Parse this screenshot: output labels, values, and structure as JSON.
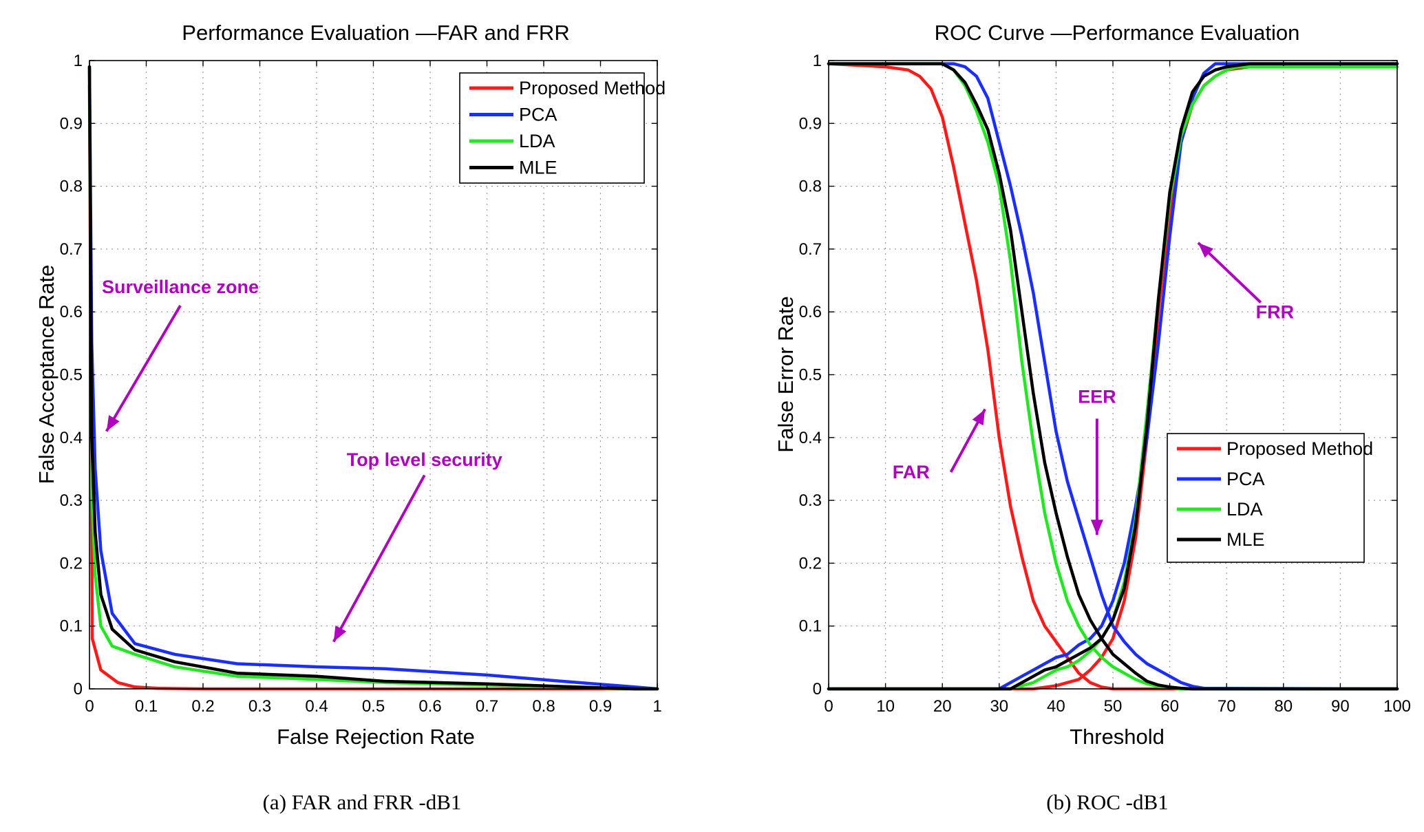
{
  "chart_data": [
    {
      "type": "line",
      "title": "Performance Evaluation —FAR and FRR",
      "xlabel": "False Rejection Rate",
      "ylabel": "False Acceptance Rate",
      "xlim": [
        0,
        1
      ],
      "ylim": [
        0,
        1
      ],
      "xticks": [
        0,
        0.1,
        0.2,
        0.3,
        0.4,
        0.5,
        0.6,
        0.7,
        0.8,
        0.9,
        1
      ],
      "yticks": [
        0,
        0.1,
        0.2,
        0.3,
        0.4,
        0.5,
        0.6,
        0.7,
        0.8,
        0.9,
        1
      ],
      "grid": true,
      "legend_position": "top-right",
      "caption": "(a) FAR and FRR -dB1",
      "series": [
        {
          "name": "Proposed Method",
          "color": "#ff1a1a",
          "x": [
            0.0,
            0.005,
            0.02,
            0.05,
            0.08,
            0.12,
            0.2,
            0.4,
            0.6,
            0.8,
            1.0
          ],
          "y": [
            0.96,
            0.08,
            0.03,
            0.01,
            0.003,
            0.001,
            0.0,
            0.0,
            0.0,
            0.0,
            0.0
          ]
        },
        {
          "name": "PCA",
          "color": "#1a2eff",
          "x": [
            0.0,
            0.004,
            0.01,
            0.02,
            0.04,
            0.08,
            0.15,
            0.26,
            0.4,
            0.52,
            0.7,
            0.82,
            0.96,
            1.0
          ],
          "y": [
            0.99,
            0.55,
            0.35,
            0.22,
            0.12,
            0.072,
            0.055,
            0.04,
            0.035,
            0.032,
            0.022,
            0.013,
            0.003,
            0.0
          ]
        },
        {
          "name": "LDA",
          "color": "#22e822",
          "x": [
            0.0,
            0.004,
            0.01,
            0.02,
            0.04,
            0.08,
            0.15,
            0.26,
            0.4,
            0.52,
            0.7,
            0.82,
            0.96,
            1.0
          ],
          "y": [
            0.99,
            0.32,
            0.18,
            0.1,
            0.068,
            0.055,
            0.035,
            0.02,
            0.015,
            0.01,
            0.006,
            0.003,
            0.0,
            0.0
          ]
        },
        {
          "name": "MLE",
          "color": "#000000",
          "x": [
            0.0,
            0.004,
            0.01,
            0.02,
            0.04,
            0.08,
            0.15,
            0.26,
            0.4,
            0.52,
            0.7,
            0.82,
            0.96,
            1.0
          ],
          "y": [
            0.99,
            0.4,
            0.25,
            0.15,
            0.095,
            0.062,
            0.043,
            0.025,
            0.02,
            0.012,
            0.008,
            0.004,
            0.0,
            0.0
          ]
        }
      ],
      "annotations": [
        {
          "text": "Surveillance zone",
          "x": 0.16,
          "y": 0.63,
          "arrow_from": [
            0.16,
            0.61
          ],
          "arrow_to": [
            0.03,
            0.41
          ]
        },
        {
          "text": "Top level security",
          "x": 0.59,
          "y": 0.355,
          "arrow_from": [
            0.59,
            0.34
          ],
          "arrow_to": [
            0.43,
            0.075
          ]
        }
      ]
    },
    {
      "type": "line",
      "title": "ROC Curve —Performance Evaluation",
      "xlabel": "Threshold",
      "ylabel": "False Error Rate",
      "xlim": [
        0,
        100
      ],
      "ylim": [
        0,
        1
      ],
      "xticks": [
        0,
        10,
        20,
        30,
        40,
        50,
        60,
        70,
        80,
        90,
        100
      ],
      "yticks": [
        0,
        0.1,
        0.2,
        0.3,
        0.4,
        0.5,
        0.6,
        0.7,
        0.8,
        0.9,
        1
      ],
      "grid": true,
      "legend_position": "lower-right",
      "caption": "(b) ROC -dB1",
      "series": [
        {
          "name": "Proposed Method",
          "color": "#ff1a1a",
          "kind": "FAR",
          "x": [
            0,
            10,
            14,
            16,
            18,
            20,
            22,
            24,
            26,
            28,
            30,
            32,
            34,
            36,
            38,
            40,
            42,
            44,
            46,
            48,
            50,
            100
          ],
          "y": [
            0.995,
            0.99,
            0.985,
            0.975,
            0.955,
            0.91,
            0.83,
            0.74,
            0.65,
            0.54,
            0.4,
            0.29,
            0.21,
            0.14,
            0.1,
            0.075,
            0.05,
            0.025,
            0.01,
            0.003,
            0.0,
            0.0
          ]
        },
        {
          "name": "Proposed Method",
          "color": "#ff1a1a",
          "kind": "FRR",
          "legend": false,
          "x": [
            0,
            36,
            40,
            44,
            46,
            48,
            50,
            52,
            54,
            56,
            58,
            60,
            62,
            64,
            66,
            68,
            70,
            74,
            100
          ],
          "y": [
            0.0,
            0.0,
            0.005,
            0.015,
            0.03,
            0.05,
            0.08,
            0.14,
            0.24,
            0.4,
            0.6,
            0.76,
            0.87,
            0.93,
            0.96,
            0.975,
            0.985,
            0.99,
            0.99
          ]
        },
        {
          "name": "PCA",
          "color": "#1a2eff",
          "kind": "FAR",
          "x": [
            0,
            20,
            22,
            24,
            26,
            28,
            30,
            32,
            34,
            36,
            38,
            40,
            42,
            44,
            46,
            48,
            50,
            52,
            54,
            56,
            58,
            60,
            62,
            64,
            66,
            100
          ],
          "y": [
            0.995,
            0.995,
            0.995,
            0.99,
            0.975,
            0.94,
            0.87,
            0.8,
            0.72,
            0.63,
            0.52,
            0.41,
            0.33,
            0.27,
            0.21,
            0.15,
            0.1,
            0.075,
            0.055,
            0.04,
            0.03,
            0.02,
            0.01,
            0.004,
            0.001,
            0.0
          ]
        },
        {
          "name": "PCA",
          "color": "#1a2eff",
          "kind": "FRR",
          "legend": false,
          "x": [
            0,
            30,
            32,
            34,
            36,
            38,
            40,
            42,
            44,
            46,
            48,
            50,
            52,
            54,
            56,
            58,
            60,
            62,
            64,
            66,
            68,
            100
          ],
          "y": [
            0.0,
            0.0,
            0.01,
            0.02,
            0.03,
            0.04,
            0.05,
            0.055,
            0.07,
            0.08,
            0.1,
            0.14,
            0.2,
            0.29,
            0.4,
            0.55,
            0.72,
            0.87,
            0.94,
            0.98,
            0.995,
            0.995
          ]
        },
        {
          "name": "LDA",
          "color": "#22e822",
          "kind": "FAR",
          "x": [
            0,
            20,
            22,
            24,
            26,
            28,
            30,
            32,
            34,
            36,
            38,
            40,
            42,
            44,
            46,
            48,
            50,
            52,
            54,
            56,
            58,
            60,
            62,
            100
          ],
          "y": [
            0.995,
            0.995,
            0.985,
            0.96,
            0.92,
            0.87,
            0.8,
            0.68,
            0.52,
            0.39,
            0.28,
            0.2,
            0.14,
            0.1,
            0.07,
            0.05,
            0.035,
            0.025,
            0.015,
            0.008,
            0.004,
            0.002,
            0.0,
            0.0
          ]
        },
        {
          "name": "LDA",
          "color": "#22e822",
          "kind": "FRR",
          "legend": false,
          "x": [
            0,
            32,
            34,
            36,
            38,
            40,
            42,
            44,
            46,
            48,
            50,
            52,
            54,
            56,
            58,
            60,
            62,
            64,
            66,
            68,
            70,
            72,
            76,
            100
          ],
          "y": [
            0.0,
            0.0,
            0.005,
            0.01,
            0.02,
            0.03,
            0.035,
            0.045,
            0.06,
            0.08,
            0.11,
            0.17,
            0.27,
            0.44,
            0.62,
            0.78,
            0.88,
            0.93,
            0.96,
            0.975,
            0.985,
            0.99,
            0.99,
            0.99
          ]
        },
        {
          "name": "MLE",
          "color": "#000000",
          "kind": "FAR",
          "x": [
            0,
            20,
            22,
            24,
            26,
            28,
            30,
            32,
            34,
            36,
            38,
            40,
            42,
            44,
            46,
            48,
            50,
            52,
            54,
            56,
            58,
            60,
            62,
            64,
            100
          ],
          "y": [
            0.995,
            0.995,
            0.985,
            0.965,
            0.93,
            0.89,
            0.82,
            0.73,
            0.6,
            0.47,
            0.36,
            0.28,
            0.21,
            0.15,
            0.11,
            0.08,
            0.055,
            0.04,
            0.025,
            0.012,
            0.006,
            0.003,
            0.001,
            0.0,
            0.0
          ]
        },
        {
          "name": "MLE",
          "color": "#000000",
          "kind": "FRR",
          "legend": false,
          "x": [
            0,
            32,
            34,
            36,
            38,
            40,
            42,
            44,
            46,
            48,
            50,
            52,
            54,
            56,
            58,
            60,
            62,
            64,
            66,
            68,
            70,
            74,
            100
          ],
          "y": [
            0.0,
            0.0,
            0.01,
            0.02,
            0.03,
            0.035,
            0.045,
            0.055,
            0.065,
            0.08,
            0.11,
            0.16,
            0.26,
            0.42,
            0.62,
            0.79,
            0.89,
            0.95,
            0.975,
            0.985,
            0.99,
            0.995,
            0.995
          ]
        }
      ],
      "annotations": [
        {
          "text": "FAR",
          "x": 14.5,
          "y": 0.335,
          "arrow_from": [
            21.5,
            0.345
          ],
          "arrow_to": [
            27.5,
            0.445
          ]
        },
        {
          "text": "EER",
          "x": 47.2,
          "y": 0.455,
          "arrow_from": [
            47.2,
            0.43
          ],
          "arrow_to": [
            47.2,
            0.245
          ]
        },
        {
          "text": "FRR",
          "x": 78.5,
          "y": 0.59,
          "arrow_from": [
            76,
            0.615
          ],
          "arrow_to": [
            65,
            0.71
          ]
        }
      ]
    }
  ]
}
